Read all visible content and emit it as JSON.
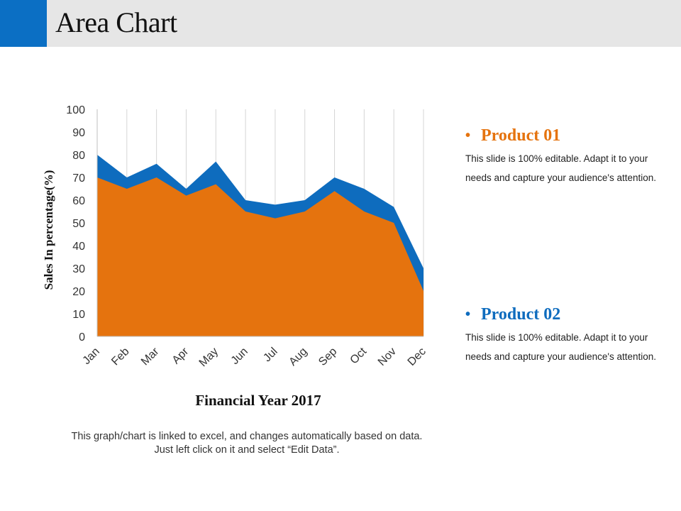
{
  "slide": {
    "title": "Area Chart",
    "footnote": "This graph/chart is linked to excel, and changes automatically based on data. Just left click on it and select “Edit Data”."
  },
  "legend": [
    {
      "bullet": "•",
      "name": "Product 01",
      "color": "#e5730e",
      "description": "This slide is 100% editable. Adapt it to your needs and capture your audience's attention."
    },
    {
      "bullet": "•",
      "name": "Product 02",
      "color": "#0e6cbe",
      "description": "This slide is 100% editable. Adapt it to your needs and capture your audience's attention."
    }
  ],
  "chart_data": {
    "type": "area",
    "stacked": true,
    "categories": [
      "Jan",
      "Feb",
      "Mar",
      "Apr",
      "May",
      "Jun",
      "Jul",
      "Aug",
      "Sep",
      "Oct",
      "Nov",
      "Dec"
    ],
    "series": [
      {
        "name": "Product 01",
        "color": "#e5730e",
        "values": [
          70,
          65,
          70,
          62,
          67,
          55,
          52,
          55,
          64,
          55,
          50,
          20
        ]
      },
      {
        "name": "Product 02",
        "color": "#0e6cbe",
        "values": [
          10,
          5,
          6,
          3,
          10,
          5,
          6,
          5,
          6,
          10,
          7,
          10
        ]
      }
    ],
    "title": "",
    "xlabel": "Financial Year 2017",
    "ylabel": "Sales In percentage(%)",
    "ylim": [
      0,
      100
    ],
    "yticks": [
      0,
      10,
      20,
      30,
      40,
      50,
      60,
      70,
      80,
      90,
      100
    ],
    "grid": "vertical"
  }
}
